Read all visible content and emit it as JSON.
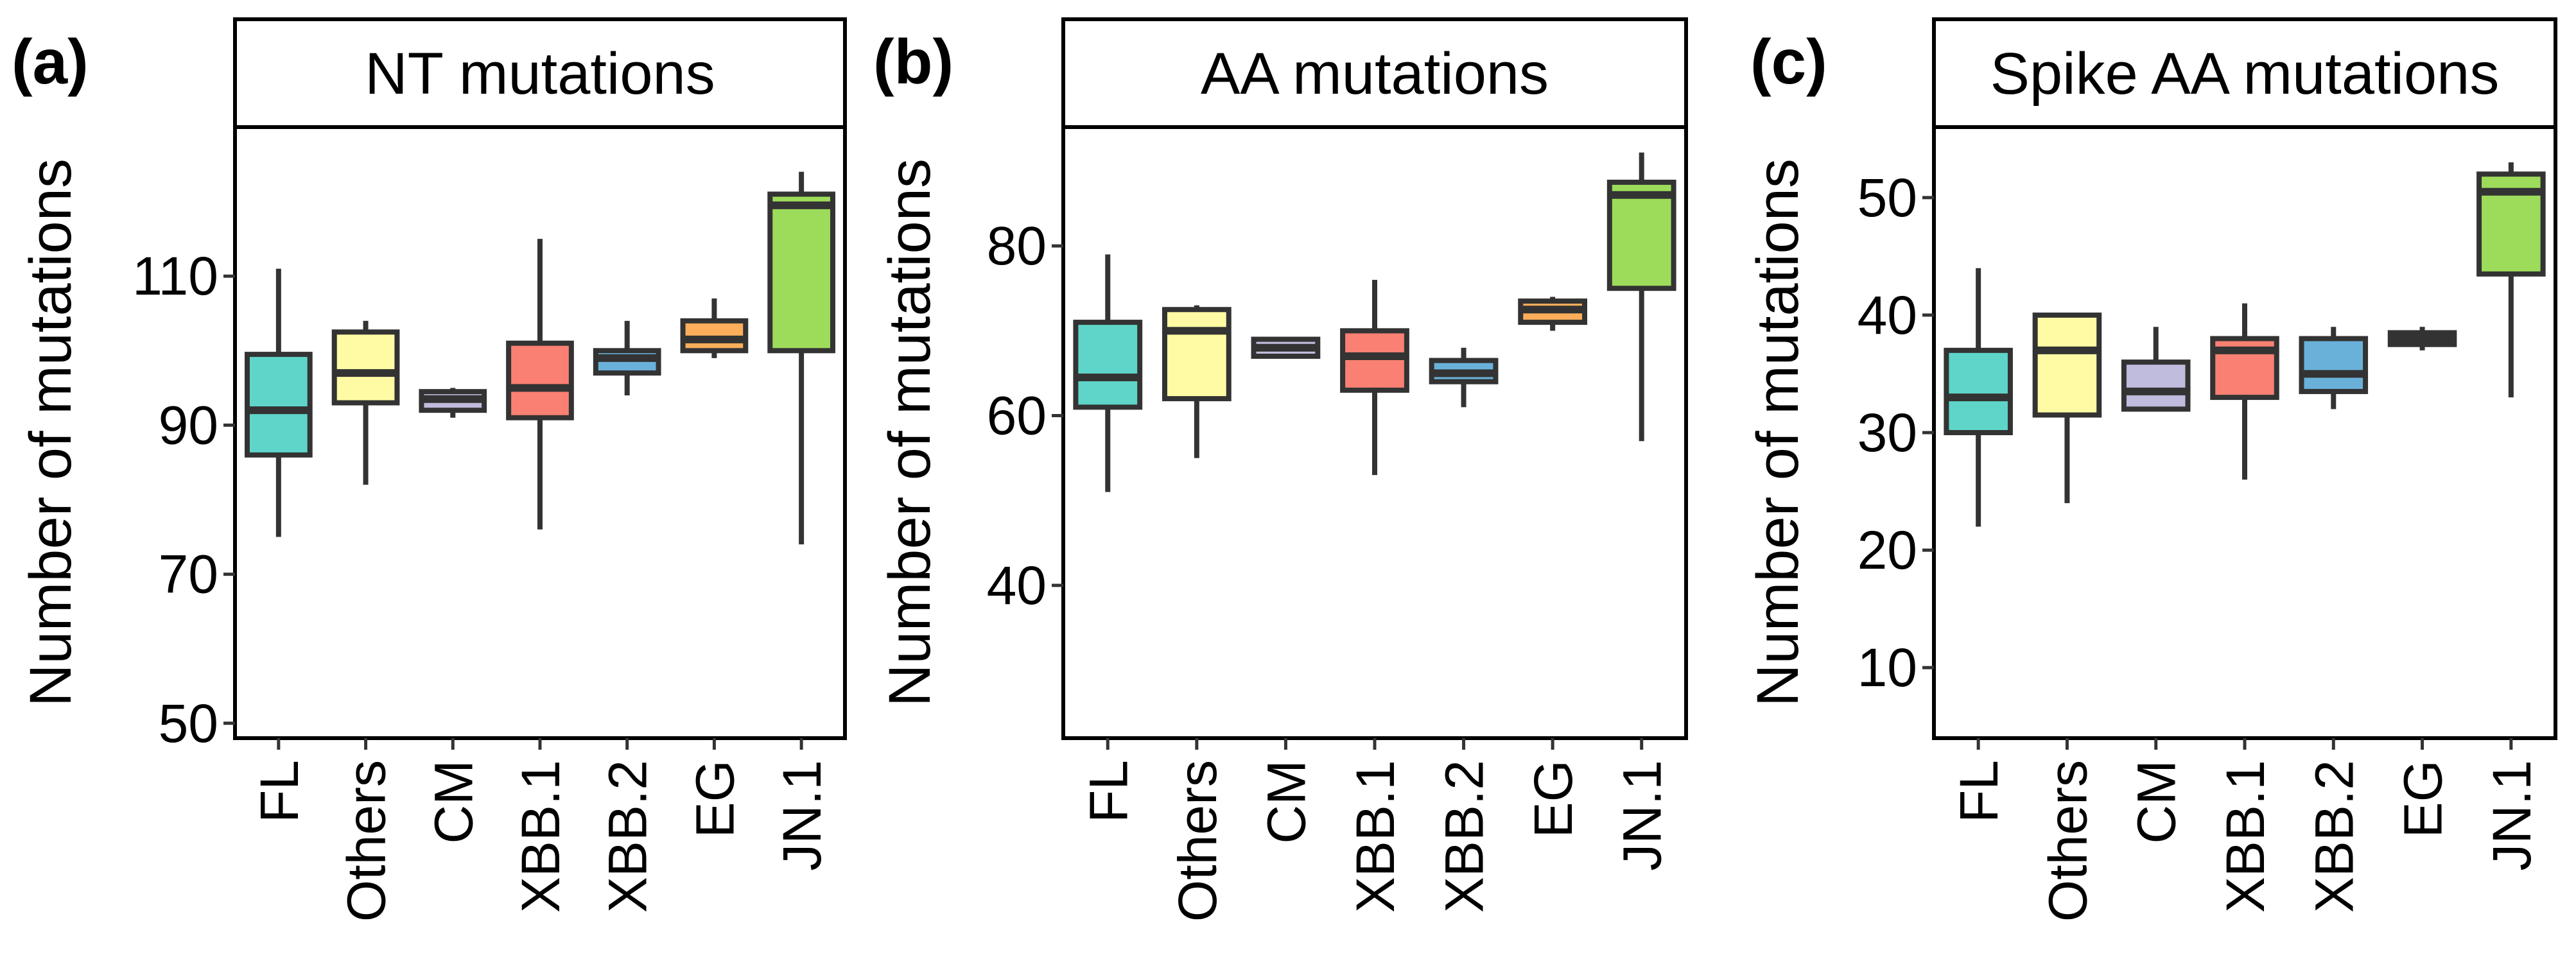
{
  "chart_data": [
    {
      "type": "boxplot",
      "panel_label": "(a)",
      "title": "NT mutations",
      "xlabel": "",
      "ylabel": "Number of mutations",
      "ylim": [
        48,
        130
      ],
      "yticks": [
        50,
        70,
        90,
        110
      ],
      "categories": [
        "FL",
        "Others",
        "CM",
        "XBB.1",
        "XBB.2",
        "EG",
        "JN.1"
      ],
      "colors": [
        "#5fd5c9",
        "#fefba4",
        "#c0bcdd",
        "#f98072",
        "#6ab1da",
        "#fcae5b",
        "#9ddc5a"
      ],
      "boxes": [
        {
          "whisker_low": 75,
          "q1": 86,
          "median": 92,
          "q3": 99.5,
          "whisker_high": 111
        },
        {
          "whisker_low": 82,
          "q1": 93,
          "median": 97,
          "q3": 102.5,
          "whisker_high": 104
        },
        {
          "whisker_low": 91,
          "q1": 92,
          "median": 93.5,
          "q3": 94.5,
          "whisker_high": 95
        },
        {
          "whisker_low": 76,
          "q1": 91,
          "median": 95,
          "q3": 101,
          "whisker_high": 115
        },
        {
          "whisker_low": 94,
          "q1": 97,
          "median": 99,
          "q3": 100,
          "whisker_high": 104
        },
        {
          "whisker_low": 99,
          "q1": 100,
          "median": 101.5,
          "q3": 104,
          "whisker_high": 107
        },
        {
          "whisker_low": 74,
          "q1": 100,
          "median": 119.5,
          "q3": 121,
          "whisker_high": 124
        }
      ]
    },
    {
      "type": "boxplot",
      "panel_label": "(b)",
      "title": "AA mutations",
      "xlabel": "",
      "ylabel": "Number of mutations",
      "ylim": [
        22,
        94
      ],
      "yticks": [
        40,
        60,
        80
      ],
      "categories": [
        "FL",
        "Others",
        "CM",
        "XBB.1",
        "XBB.2",
        "EG",
        "JN.1"
      ],
      "colors": [
        "#5fd5c9",
        "#fefba4",
        "#c0bcdd",
        "#f98072",
        "#6ab1da",
        "#fcae5b",
        "#9ddc5a"
      ],
      "boxes": [
        {
          "whisker_low": 51,
          "q1": 61,
          "median": 64.5,
          "q3": 71,
          "whisker_high": 79
        },
        {
          "whisker_low": 55,
          "q1": 62,
          "median": 70,
          "q3": 72.5,
          "whisker_high": 73
        },
        {
          "whisker_low": 67,
          "q1": 67,
          "median": 68,
          "q3": 69,
          "whisker_high": 69
        },
        {
          "whisker_low": 53,
          "q1": 63,
          "median": 67,
          "q3": 70,
          "whisker_high": 76
        },
        {
          "whisker_low": 61,
          "q1": 64,
          "median": 65,
          "q3": 66.5,
          "whisker_high": 68
        },
        {
          "whisker_low": 70,
          "q1": 71,
          "median": 72.5,
          "q3": 73.5,
          "whisker_high": 74
        },
        {
          "whisker_low": 57,
          "q1": 75,
          "median": 86,
          "q3": 87.5,
          "whisker_high": 91
        }
      ]
    },
    {
      "type": "boxplot",
      "panel_label": "(c)",
      "title": "Spike AA mutations",
      "xlabel": "",
      "ylabel": "Number of mutations",
      "ylim": [
        4,
        56
      ],
      "yticks": [
        10,
        20,
        30,
        40,
        50
      ],
      "categories": [
        "FL",
        "Others",
        "CM",
        "XBB.1",
        "XBB.2",
        "EG",
        "JN.1"
      ],
      "colors": [
        "#5fd5c9",
        "#fefba4",
        "#c0bcdd",
        "#f98072",
        "#6ab1da",
        "#fcae5b",
        "#9ddc5a"
      ],
      "boxes": [
        {
          "whisker_low": 22,
          "q1": 30,
          "median": 33,
          "q3": 37,
          "whisker_high": 44
        },
        {
          "whisker_low": 24,
          "q1": 31.5,
          "median": 37,
          "q3": 40,
          "whisker_high": 40
        },
        {
          "whisker_low": 32,
          "q1": 32,
          "median": 33.5,
          "q3": 36,
          "whisker_high": 39
        },
        {
          "whisker_low": 26,
          "q1": 33,
          "median": 37,
          "q3": 38,
          "whisker_high": 41
        },
        {
          "whisker_low": 32,
          "q1": 33.5,
          "median": 35,
          "q3": 38,
          "whisker_high": 39
        },
        {
          "whisker_low": 37,
          "q1": 37.5,
          "median": 38,
          "q3": 38.5,
          "whisker_high": 39
        },
        {
          "whisker_low": 33,
          "q1": 43.5,
          "median": 50.5,
          "q3": 52,
          "whisker_high": 53
        }
      ]
    }
  ]
}
